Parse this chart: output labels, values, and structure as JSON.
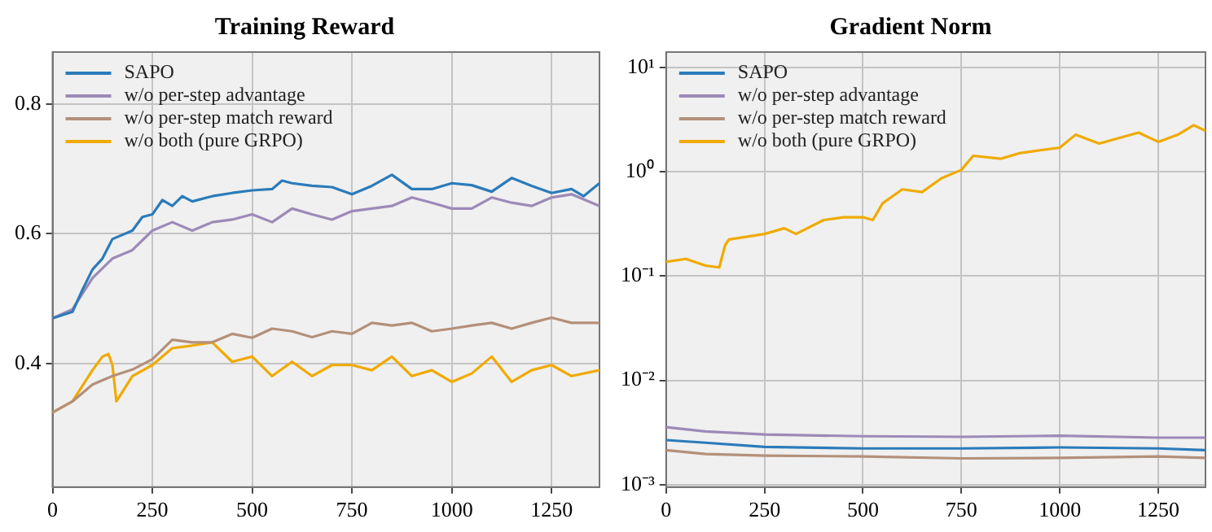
{
  "chart_data": [
    {
      "type": "line",
      "title": "Training Reward",
      "xlim": [
        0,
        1370
      ],
      "xticks": [
        0,
        250,
        500,
        750,
        1000,
        1250
      ],
      "ylim": [
        0.21,
        0.88
      ],
      "yticks": [
        0.4,
        0.6,
        0.8
      ],
      "grid": true,
      "legend": "top left",
      "series": [
        {
          "name": "SAPO",
          "color": "#2b7bba",
          "x": [
            0,
            50,
            75,
            100,
            125,
            150,
            200,
            225,
            250,
            275,
            300,
            325,
            350,
            400,
            450,
            500,
            550,
            575,
            600,
            650,
            700,
            750,
            800,
            850,
            900,
            950,
            1000,
            1050,
            1100,
            1150,
            1200,
            1250,
            1300,
            1330,
            1370
          ],
          "values": [
            0.47,
            0.48,
            0.514,
            0.545,
            0.562,
            0.592,
            0.605,
            0.626,
            0.63,
            0.652,
            0.643,
            0.658,
            0.65,
            0.658,
            0.663,
            0.667,
            0.669,
            0.682,
            0.678,
            0.674,
            0.672,
            0.661,
            0.674,
            0.691,
            0.669,
            0.669,
            0.678,
            0.675,
            0.665,
            0.686,
            0.674,
            0.663,
            0.669,
            0.658,
            0.678
          ]
        },
        {
          "name": "w/o per-step advantage",
          "color": "#9c8ab8",
          "x": [
            0,
            50,
            100,
            150,
            200,
            250,
            300,
            350,
            400,
            450,
            500,
            550,
            600,
            650,
            700,
            750,
            800,
            850,
            900,
            950,
            1000,
            1050,
            1100,
            1150,
            1200,
            1250,
            1300,
            1370
          ],
          "values": [
            0.47,
            0.484,
            0.532,
            0.562,
            0.575,
            0.605,
            0.618,
            0.605,
            0.618,
            0.622,
            0.63,
            0.618,
            0.639,
            0.63,
            0.622,
            0.635,
            0.639,
            0.643,
            0.656,
            0.648,
            0.639,
            0.639,
            0.656,
            0.648,
            0.643,
            0.656,
            0.661,
            0.643
          ]
        },
        {
          "name": "w/o per-step match reward",
          "color": "#b4907a",
          "x": [
            0,
            50,
            100,
            150,
            200,
            250,
            300,
            350,
            400,
            450,
            500,
            550,
            600,
            650,
            700,
            750,
            800,
            850,
            900,
            950,
            1000,
            1050,
            1100,
            1150,
            1200,
            1250,
            1300,
            1370
          ],
          "values": [
            0.325,
            0.342,
            0.368,
            0.381,
            0.391,
            0.407,
            0.437,
            0.433,
            0.433,
            0.446,
            0.44,
            0.454,
            0.45,
            0.441,
            0.45,
            0.446,
            0.463,
            0.459,
            0.463,
            0.45,
            0.454,
            0.459,
            0.463,
            0.454,
            0.463,
            0.471,
            0.463,
            0.463
          ]
        },
        {
          "name": "w/o both (pure GRPO)",
          "color": "#f0aa00",
          "x": [
            0,
            50,
            100,
            125,
            140,
            150,
            160,
            200,
            250,
            300,
            350,
            400,
            450,
            500,
            550,
            600,
            650,
            700,
            750,
            800,
            850,
            900,
            950,
            1000,
            1050,
            1100,
            1150,
            1200,
            1250,
            1300,
            1370
          ],
          "values": [
            0.325,
            0.342,
            0.39,
            0.411,
            0.415,
            0.398,
            0.342,
            0.381,
            0.398,
            0.424,
            0.428,
            0.433,
            0.403,
            0.411,
            0.381,
            0.403,
            0.381,
            0.398,
            0.398,
            0.39,
            0.411,
            0.381,
            0.39,
            0.372,
            0.385,
            0.411,
            0.372,
            0.39,
            0.398,
            0.381,
            0.39
          ]
        }
      ]
    },
    {
      "type": "line",
      "title": "Gradient Norm",
      "log": "y",
      "xlim": [
        0,
        1370
      ],
      "xticks": [
        0,
        250,
        500,
        750,
        1000,
        1250
      ],
      "ylim": [
        0.00095,
        14
      ],
      "yticks": [
        {
          "value": 0.001,
          "label": "10⁻³"
        },
        {
          "value": 0.01,
          "label": "10⁻²"
        },
        {
          "value": 0.1,
          "label": "10⁻¹"
        },
        {
          "value": 1,
          "label": "10⁰"
        },
        {
          "value": 10,
          "label": "10¹"
        }
      ],
      "grid": true,
      "legend": "top left",
      "series": [
        {
          "name": "SAPO",
          "color": "#2b7bba",
          "x": [
            0,
            100,
            250,
            500,
            750,
            1000,
            1250,
            1370
          ],
          "values": [
            0.00268,
            0.00253,
            0.00231,
            0.00223,
            0.00223,
            0.00228,
            0.00223,
            0.00215
          ]
        },
        {
          "name": "w/o per-step advantage",
          "color": "#9c8ab8",
          "x": [
            0,
            100,
            250,
            500,
            750,
            1000,
            1250,
            1370
          ],
          "values": [
            0.00356,
            0.00324,
            0.00303,
            0.00292,
            0.00288,
            0.00295,
            0.00283,
            0.00283
          ]
        },
        {
          "name": "w/o per-step match reward",
          "color": "#b4907a",
          "x": [
            0,
            100,
            250,
            500,
            750,
            1000,
            1250,
            1370
          ],
          "values": [
            0.00215,
            0.00197,
            0.0019,
            0.00187,
            0.00179,
            0.00181,
            0.00187,
            0.00181
          ]
        },
        {
          "name": "w/o both (pure GRPO)",
          "color": "#f0aa00",
          "x": [
            0,
            50,
            100,
            135,
            150,
            160,
            250,
            300,
            330,
            400,
            450,
            500,
            525,
            550,
            600,
            650,
            700,
            750,
            780,
            850,
            900,
            1000,
            1040,
            1100,
            1200,
            1250,
            1300,
            1340,
            1370
          ],
          "values": [
            0.137,
            0.146,
            0.126,
            0.121,
            0.198,
            0.224,
            0.253,
            0.287,
            0.253,
            0.344,
            0.366,
            0.366,
            0.344,
            0.498,
            0.677,
            0.637,
            0.867,
            1.04,
            1.42,
            1.33,
            1.51,
            1.7,
            2.26,
            1.86,
            2.37,
            1.93,
            2.26,
            2.79,
            2.46
          ]
        }
      ]
    }
  ]
}
